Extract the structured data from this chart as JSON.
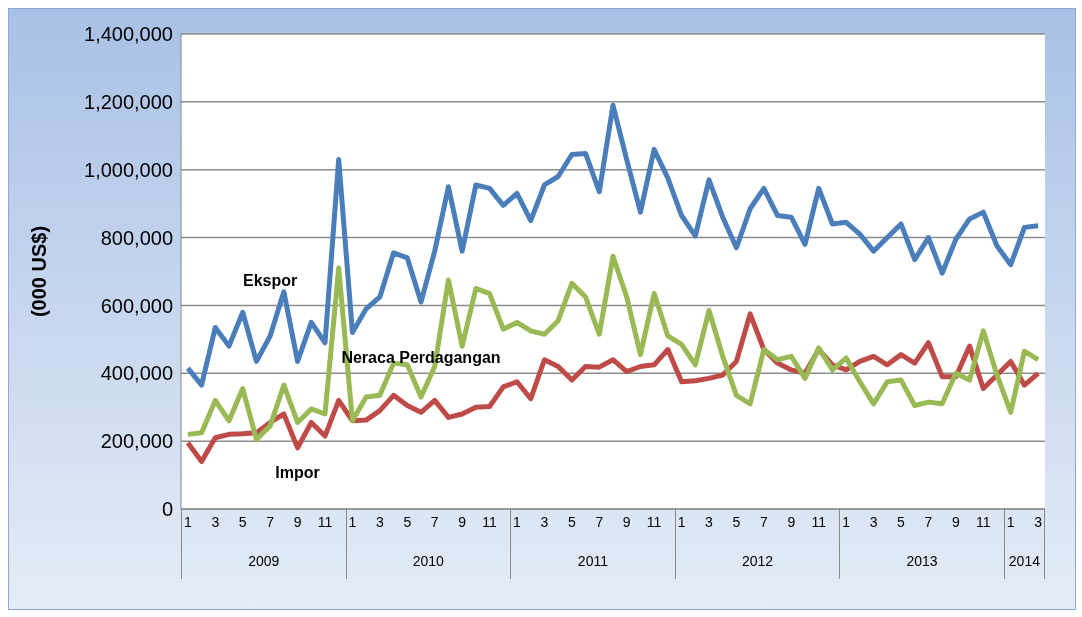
{
  "chart_data": {
    "type": "line",
    "ylabel": "(000 US$)",
    "categories": [
      "1",
      null,
      "3",
      null,
      "5",
      null,
      "7",
      null,
      "9",
      null,
      "11",
      null,
      "1",
      null,
      "3",
      null,
      "5",
      null,
      "7",
      null,
      "9",
      null,
      "11",
      null,
      "1",
      null,
      "3",
      null,
      "5",
      null,
      "7",
      null,
      "9",
      null,
      "11",
      null,
      "1",
      null,
      "3",
      null,
      "5",
      null,
      "7",
      null,
      "9",
      null,
      "11",
      null,
      "1",
      null,
      "3",
      null,
      "5",
      null,
      "7",
      null,
      "9",
      null,
      "11",
      null,
      "1",
      null,
      "3"
    ],
    "annotations": [
      "2009",
      "2010",
      "2011",
      "2012",
      "2013",
      "2014"
    ],
    "series": [
      {
        "name": "Ekspor",
        "color": "#4a7ebb",
        "values": [
          415000,
          365000,
          535000,
          480000,
          580000,
          435000,
          510000,
          640000,
          435000,
          550000,
          490000,
          1030000,
          520000,
          590000,
          625000,
          755000,
          740000,
          610000,
          760000,
          950000,
          760000,
          955000,
          945000,
          895000,
          930000,
          850000,
          955000,
          980000,
          1045000,
          1048000,
          935000,
          1190000,
          1030000,
          875000,
          1060000,
          975000,
          865000,
          805000,
          970000,
          860000,
          770000,
          885000,
          945000,
          865000,
          860000,
          780000,
          945000,
          840000,
          845000,
          810000,
          760000,
          800000,
          840000,
          735000,
          800000,
          695000,
          795000,
          855000,
          875000,
          775000,
          720000,
          830000,
          835000
        ]
      },
      {
        "name": "Impor",
        "color": "#be4b48",
        "values": [
          195000,
          140000,
          210000,
          220000,
          222000,
          225000,
          255000,
          280000,
          180000,
          255000,
          215000,
          320000,
          260000,
          262000,
          290000,
          335000,
          305000,
          285000,
          320000,
          270000,
          280000,
          300000,
          302000,
          360000,
          375000,
          325000,
          440000,
          420000,
          380000,
          420000,
          418000,
          440000,
          405000,
          420000,
          425000,
          470000,
          375000,
          378000,
          385000,
          395000,
          435000,
          575000,
          470000,
          430000,
          410000,
          400000,
          470000,
          425000,
          410000,
          435000,
          450000,
          425000,
          455000,
          430000,
          490000,
          390000,
          390000,
          480000,
          355000,
          395000,
          435000,
          365000,
          400000
        ]
      },
      {
        "name": "Neraca Perdagangan",
        "color": "#98b954",
        "values": [
          220000,
          225000,
          320000,
          260000,
          355000,
          205000,
          245000,
          365000,
          255000,
          295000,
          280000,
          710000,
          260000,
          330000,
          335000,
          430000,
          425000,
          330000,
          420000,
          675000,
          480000,
          650000,
          635000,
          530000,
          550000,
          525000,
          515000,
          555000,
          665000,
          625000,
          515000,
          745000,
          625000,
          455000,
          635000,
          510000,
          485000,
          425000,
          585000,
          450000,
          335000,
          310000,
          470000,
          440000,
          450000,
          385000,
          475000,
          410000,
          445000,
          375000,
          310000,
          375000,
          380000,
          305000,
          315000,
          310000,
          400000,
          380000,
          525000,
          395000,
          285000,
          465000,
          440000
        ]
      }
    ],
    "ylim": [
      0,
      1400000
    ],
    "yticks": [
      0,
      {
        "value": 200000,
        "label": "200,000"
      },
      {
        "value": 400000,
        "label": "400,000"
      },
      {
        "value": 600000,
        "label": "600,000"
      },
      {
        "value": 800000,
        "label": "800,000"
      },
      {
        "value": 1000000,
        "label": "1,000,000"
      },
      {
        "value": 1200000,
        "label": "1,200,000"
      },
      {
        "value": 1400000,
        "label": "1,400,000"
      }
    ],
    "grid": "y",
    "marker": "none",
    "line_style": "solid"
  }
}
